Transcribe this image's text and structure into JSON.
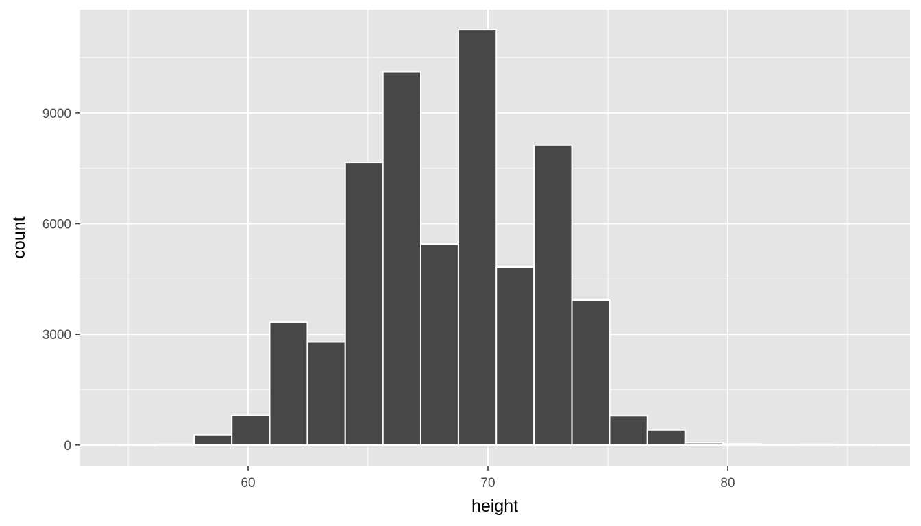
{
  "chart_data": {
    "type": "bar",
    "subtype": "histogram",
    "xlabel": "height",
    "ylabel": "count",
    "xlim": [
      53,
      87.6
    ],
    "ylim": [
      -560,
      11800
    ],
    "x_ticks": [
      60,
      70,
      80
    ],
    "x_tick_labels": [
      "60",
      "70",
      "80"
    ],
    "y_ticks": [
      0,
      3000,
      6000,
      9000
    ],
    "y_tick_labels": [
      "0",
      "3000",
      "6000",
      "9000"
    ],
    "bin_width": 1.575,
    "bins": [
      {
        "x0": 54.6,
        "x1": 56.17,
        "count": 3
      },
      {
        "x0": 56.17,
        "x1": 57.75,
        "count": 20
      },
      {
        "x0": 57.75,
        "x1": 59.32,
        "count": 280
      },
      {
        "x0": 59.32,
        "x1": 60.9,
        "count": 800
      },
      {
        "x0": 60.9,
        "x1": 62.47,
        "count": 3330
      },
      {
        "x0": 62.47,
        "x1": 64.05,
        "count": 2790
      },
      {
        "x0": 64.05,
        "x1": 65.62,
        "count": 7660
      },
      {
        "x0": 65.62,
        "x1": 67.2,
        "count": 10120
      },
      {
        "x0": 67.2,
        "x1": 68.77,
        "count": 5450
      },
      {
        "x0": 68.77,
        "x1": 70.35,
        "count": 11260
      },
      {
        "x0": 70.35,
        "x1": 71.92,
        "count": 4820
      },
      {
        "x0": 71.92,
        "x1": 73.5,
        "count": 8130
      },
      {
        "x0": 73.5,
        "x1": 75.07,
        "count": 3930
      },
      {
        "x0": 75.07,
        "x1": 76.65,
        "count": 790
      },
      {
        "x0": 76.65,
        "x1": 78.22,
        "count": 410
      },
      {
        "x0": 78.22,
        "x1": 79.8,
        "count": 60
      },
      {
        "x0": 79.8,
        "x1": 81.37,
        "count": 30
      },
      {
        "x0": 81.37,
        "x1": 82.95,
        "count": 10
      },
      {
        "x0": 82.95,
        "x1": 84.52,
        "count": 20
      },
      {
        "x0": 84.52,
        "x1": 86.1,
        "count": 5
      }
    ],
    "grid": true,
    "legend": "none",
    "colors": {
      "panel_background": "#e5e5e5",
      "grid": "#ffffff",
      "bar_fill": "#474747",
      "bar_outline": "#ffffff"
    }
  }
}
